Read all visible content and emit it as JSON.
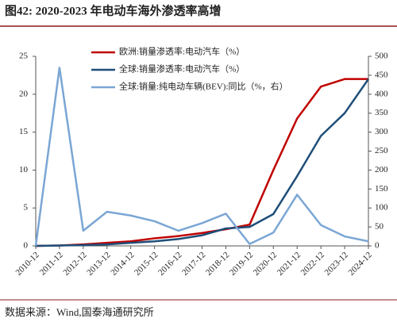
{
  "chart_data": {
    "type": "line",
    "title": "图42: 2020-2023 年电动车海外渗透率高增",
    "source": "数据来源：Wind,国泰海通研究所",
    "categories": [
      "2010-12",
      "2011-12",
      "2012-12",
      "2013-12",
      "2014-12",
      "2015-12",
      "2016-12",
      "2017-12",
      "2018-12",
      "2019-12",
      "2020-12",
      "2021-12",
      "2022-12",
      "2023-12",
      "2024-12"
    ],
    "series": [
      {
        "name": "欧洲:销量渗透率:电动汽车（%）",
        "color": "#c00000",
        "values": [
          0,
          0.05,
          0.2,
          0.4,
          0.6,
          1.0,
          1.3,
          1.7,
          2.2,
          2.8,
          10.0,
          16.8,
          21.0,
          22.0,
          22.0
        ]
      },
      {
        "name": "全球:销量渗透率:电动汽车（%）",
        "color": "#1f4e79",
        "values": [
          0,
          0.05,
          0.1,
          0.2,
          0.4,
          0.6,
          0.9,
          1.4,
          2.3,
          2.5,
          4.2,
          9.2,
          14.5,
          17.5,
          22.0
        ]
      },
      {
        "name": "全球:销量:纯电动车辆(BEV):同比（%，右）",
        "color": "#7aa6d4",
        "axis": "y2",
        "values": [
          0,
          470,
          40,
          90,
          80,
          65,
          40,
          60,
          85,
          5,
          35,
          135,
          55,
          25,
          12
        ]
      }
    ],
    "ylim": [
      0,
      25
    ],
    "yticks": [
      0,
      5,
      10,
      15,
      20,
      25
    ],
    "y2lim": [
      0,
      500
    ],
    "y2ticks": [
      0,
      50,
      100,
      150,
      200,
      250,
      300,
      350,
      400,
      450,
      500
    ]
  }
}
